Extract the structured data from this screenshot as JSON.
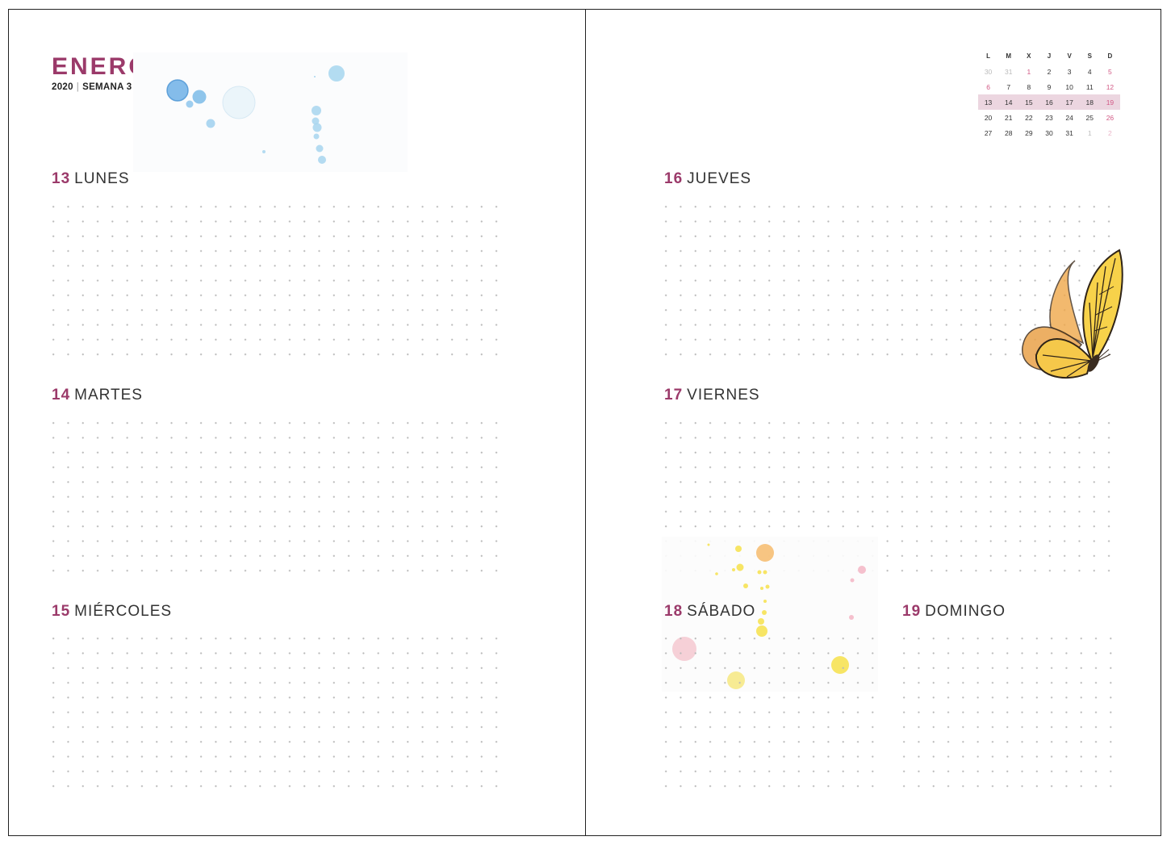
{
  "header": {
    "month": "ENERO",
    "year": "2020",
    "separator": "|",
    "week": "SEMANA 3"
  },
  "days": [
    {
      "num": "13",
      "name": "LUNES"
    },
    {
      "num": "14",
      "name": "MARTES"
    },
    {
      "num": "15",
      "name": "MIÉRCOLES"
    },
    {
      "num": "16",
      "name": "JUEVES"
    },
    {
      "num": "17",
      "name": "VIERNES"
    },
    {
      "num": "18",
      "name": "SÁBADO"
    },
    {
      "num": "19",
      "name": "DOMINGO"
    }
  ],
  "mini_calendar": {
    "headers": [
      "L",
      "M",
      "X",
      "J",
      "V",
      "S",
      "D"
    ],
    "weeks": [
      [
        "30",
        "31",
        "1",
        "2",
        "3",
        "4",
        "5"
      ],
      [
        "6",
        "7",
        "8",
        "9",
        "10",
        "11",
        "12"
      ],
      [
        "13",
        "14",
        "15",
        "16",
        "17",
        "18",
        "19"
      ],
      [
        "20",
        "21",
        "22",
        "23",
        "24",
        "25",
        "26"
      ],
      [
        "27",
        "28",
        "29",
        "30",
        "31",
        "1",
        "2"
      ]
    ],
    "current_week_index": 2,
    "highlight_color": "#ecd6e0"
  },
  "colors": {
    "accent": "#9b3a6a",
    "sunday": "#d25a86",
    "dot_grid": "#b9b9b9"
  },
  "illustrations": [
    "blue-watercolor-splash",
    "butterfly",
    "yellow-pink-watercolor-splash"
  ]
}
